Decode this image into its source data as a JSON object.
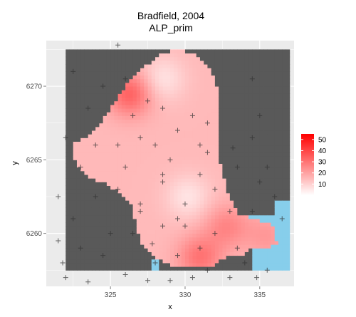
{
  "chart_data": {
    "type": "heatmap",
    "title": "Bradfield, 2004",
    "subtitle": "ALP_prim",
    "xlabel": "x",
    "ylabel": "y",
    "xlim": [
      320.7,
      337.3
    ],
    "ylim": [
      6256.4,
      6273.1
    ],
    "xticks": [
      325,
      330,
      335
    ],
    "yticks": [
      6260,
      6265,
      6270
    ],
    "grid": true,
    "legend": {
      "placement": "right",
      "range": [
        0,
        55
      ],
      "ticks": [
        10,
        20,
        30,
        40,
        50
      ],
      "color_low": "#ffffff",
      "color_high": "#ff0000"
    },
    "colors": {
      "panel": "#ebebeb",
      "outside_region": "#595959",
      "water": "#87ceeb",
      "points": "#333333"
    },
    "region_extent": {
      "x": [
        322,
        337
      ],
      "y": [
        6257.5,
        6272.5
      ]
    },
    "value_hotspots": [
      {
        "x": 328.5,
        "y": 6270.5,
        "value": 6
      },
      {
        "x": 330.2,
        "y": 6262.5,
        "value": 6
      },
      {
        "x": 326.3,
        "y": 6269.5,
        "value": 34
      },
      {
        "x": 331.0,
        "y": 6258.4,
        "value": 30
      },
      {
        "x": 332.8,
        "y": 6260.5,
        "value": 26
      },
      {
        "x": 335.5,
        "y": 6259.8,
        "value": 22
      }
    ],
    "booths": [
      [
        326,
        6270.5
      ],
      [
        327.5,
        6269
      ],
      [
        326.5,
        6268
      ],
      [
        327,
        6266.5
      ],
      [
        328,
        6266
      ],
      [
        329.5,
        6267
      ],
      [
        330.5,
        6268
      ],
      [
        331,
        6266
      ],
      [
        329,
        6265
      ],
      [
        326,
        6264.5
      ],
      [
        325.5,
        6263
      ],
      [
        327,
        6262
      ],
      [
        328.5,
        6263.5
      ],
      [
        330,
        6262
      ],
      [
        331,
        6264
      ],
      [
        330,
        6260.5
      ],
      [
        328.5,
        6260.5
      ],
      [
        326.5,
        6260
      ],
      [
        327,
        6261.5
      ],
      [
        329.5,
        6258.5
      ],
      [
        331,
        6259
      ],
      [
        332,
        6260
      ],
      [
        333,
        6261.5
      ],
      [
        333.5,
        6259
      ],
      [
        331.5,
        6257.5
      ],
      [
        330.5,
        6257
      ],
      [
        328,
        6258
      ],
      [
        325.5,
        6266
      ],
      [
        328.5,
        6264
      ],
      [
        332,
        6263
      ],
      [
        331.5,
        6267.5
      ],
      [
        328.5,
        6268.5
      ],
      [
        324.5,
        6270
      ],
      [
        323.5,
        6268.5
      ],
      [
        322,
        6266.5
      ],
      [
        321.5,
        6262.5
      ],
      [
        322.5,
        6261
      ],
      [
        321.5,
        6259.5
      ],
      [
        321.8,
        6258
      ],
      [
        323,
        6259
      ],
      [
        324.5,
        6258.5
      ],
      [
        325,
        6260
      ],
      [
        324,
        6262.5
      ],
      [
        323,
        6264.5
      ],
      [
        324,
        6266
      ],
      [
        325.5,
        6272.8
      ],
      [
        322.5,
        6271
      ],
      [
        334.5,
        6270.5
      ],
      [
        335,
        6268
      ],
      [
        334.5,
        6266.5
      ],
      [
        335.5,
        6264.5
      ],
      [
        335,
        6263.5
      ],
      [
        336,
        6262.5
      ],
      [
        334.5,
        6261.5
      ],
      [
        336.5,
        6261
      ],
      [
        334,
        6258
      ],
      [
        335.5,
        6257.5
      ],
      [
        333,
        6257
      ],
      [
        327.5,
        6256.8
      ],
      [
        326,
        6257.2
      ],
      [
        322,
        6257
      ],
      [
        323.5,
        6256.7
      ],
      [
        333.5,
        6264.5
      ],
      [
        331.5,
        6265.5
      ],
      [
        329.5,
        6261
      ],
      [
        327.8,
        6259.3
      ],
      [
        333.2,
        6265.8
      ],
      [
        329,
        6256.8
      ],
      [
        334.8,
        6257
      ]
    ]
  }
}
